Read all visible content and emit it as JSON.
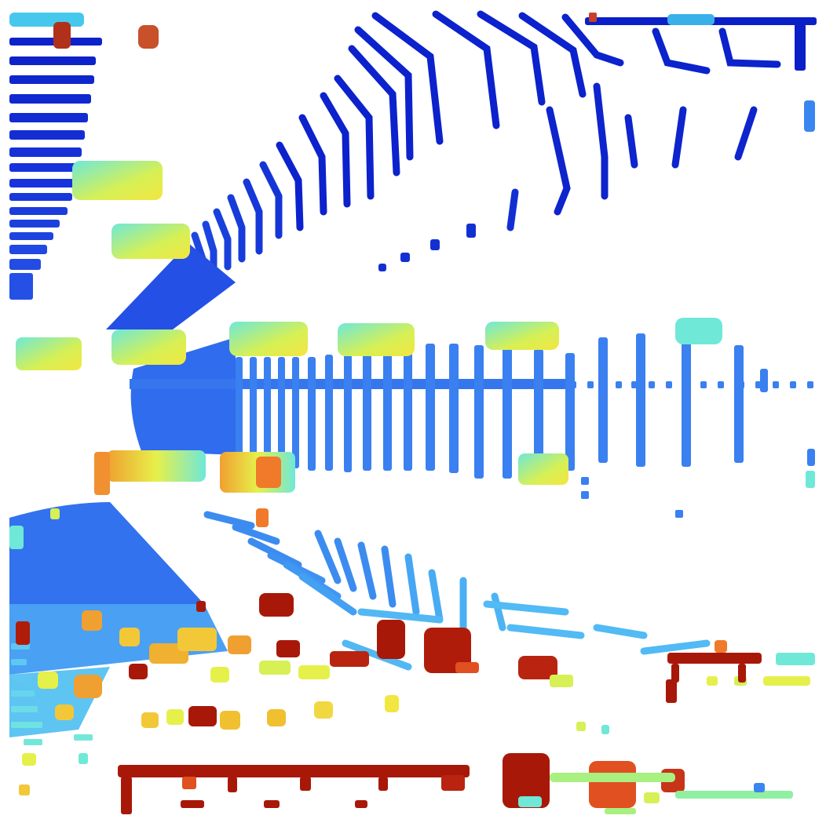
{
  "view": {
    "kind": "lidar-bev-height-map",
    "colormap": "jet",
    "background": "#ffffff",
    "palette": {
      "ground_far": "#0a1fd0",
      "ground_mid": "#1e3fe0",
      "ground_near": "#3a7ff0",
      "ground_light": "#4fb4f5",
      "low_object": "#6fe8d8",
      "mid_object": "#e6f04a",
      "high_object": "#f07a2a",
      "tall_object": "#a81808"
    }
  }
}
